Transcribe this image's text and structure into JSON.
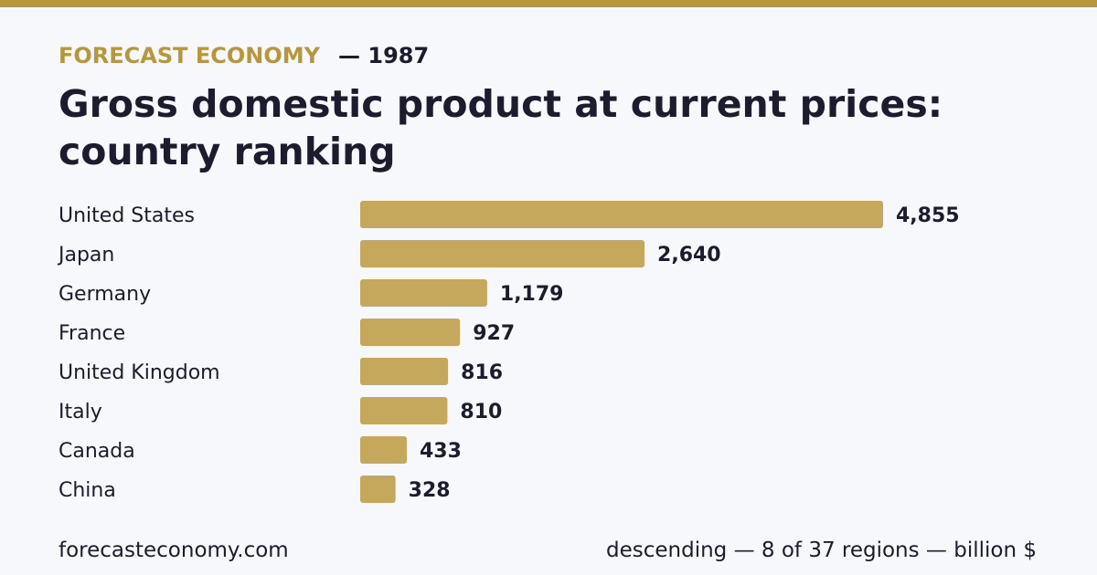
{
  "header": {
    "brand": "FORECAST ECONOMY",
    "year": "— 1987",
    "title": "Gross domestic product at current prices: country ranking"
  },
  "footer": {
    "site": "forecasteconomy.com",
    "note": "descending — 8 of 37 regions — billion $"
  },
  "colors": {
    "accent": "#b8973a",
    "bar": "#c5a85c",
    "text": "#1c1c2e",
    "background": "#f7f8fb"
  },
  "chart_data": {
    "type": "bar",
    "orientation": "horizontal",
    "categories": [
      "United States",
      "Japan",
      "Germany",
      "France",
      "United Kingdom",
      "Italy",
      "Canada",
      "China"
    ],
    "values": [
      4855,
      2640,
      1179,
      927,
      816,
      810,
      433,
      328
    ],
    "value_labels": [
      "4,855",
      "2,640",
      "1,179",
      "927",
      "816",
      "810",
      "433",
      "328"
    ],
    "xlim": [
      0,
      4855
    ],
    "grid": false,
    "legend": "none"
  }
}
